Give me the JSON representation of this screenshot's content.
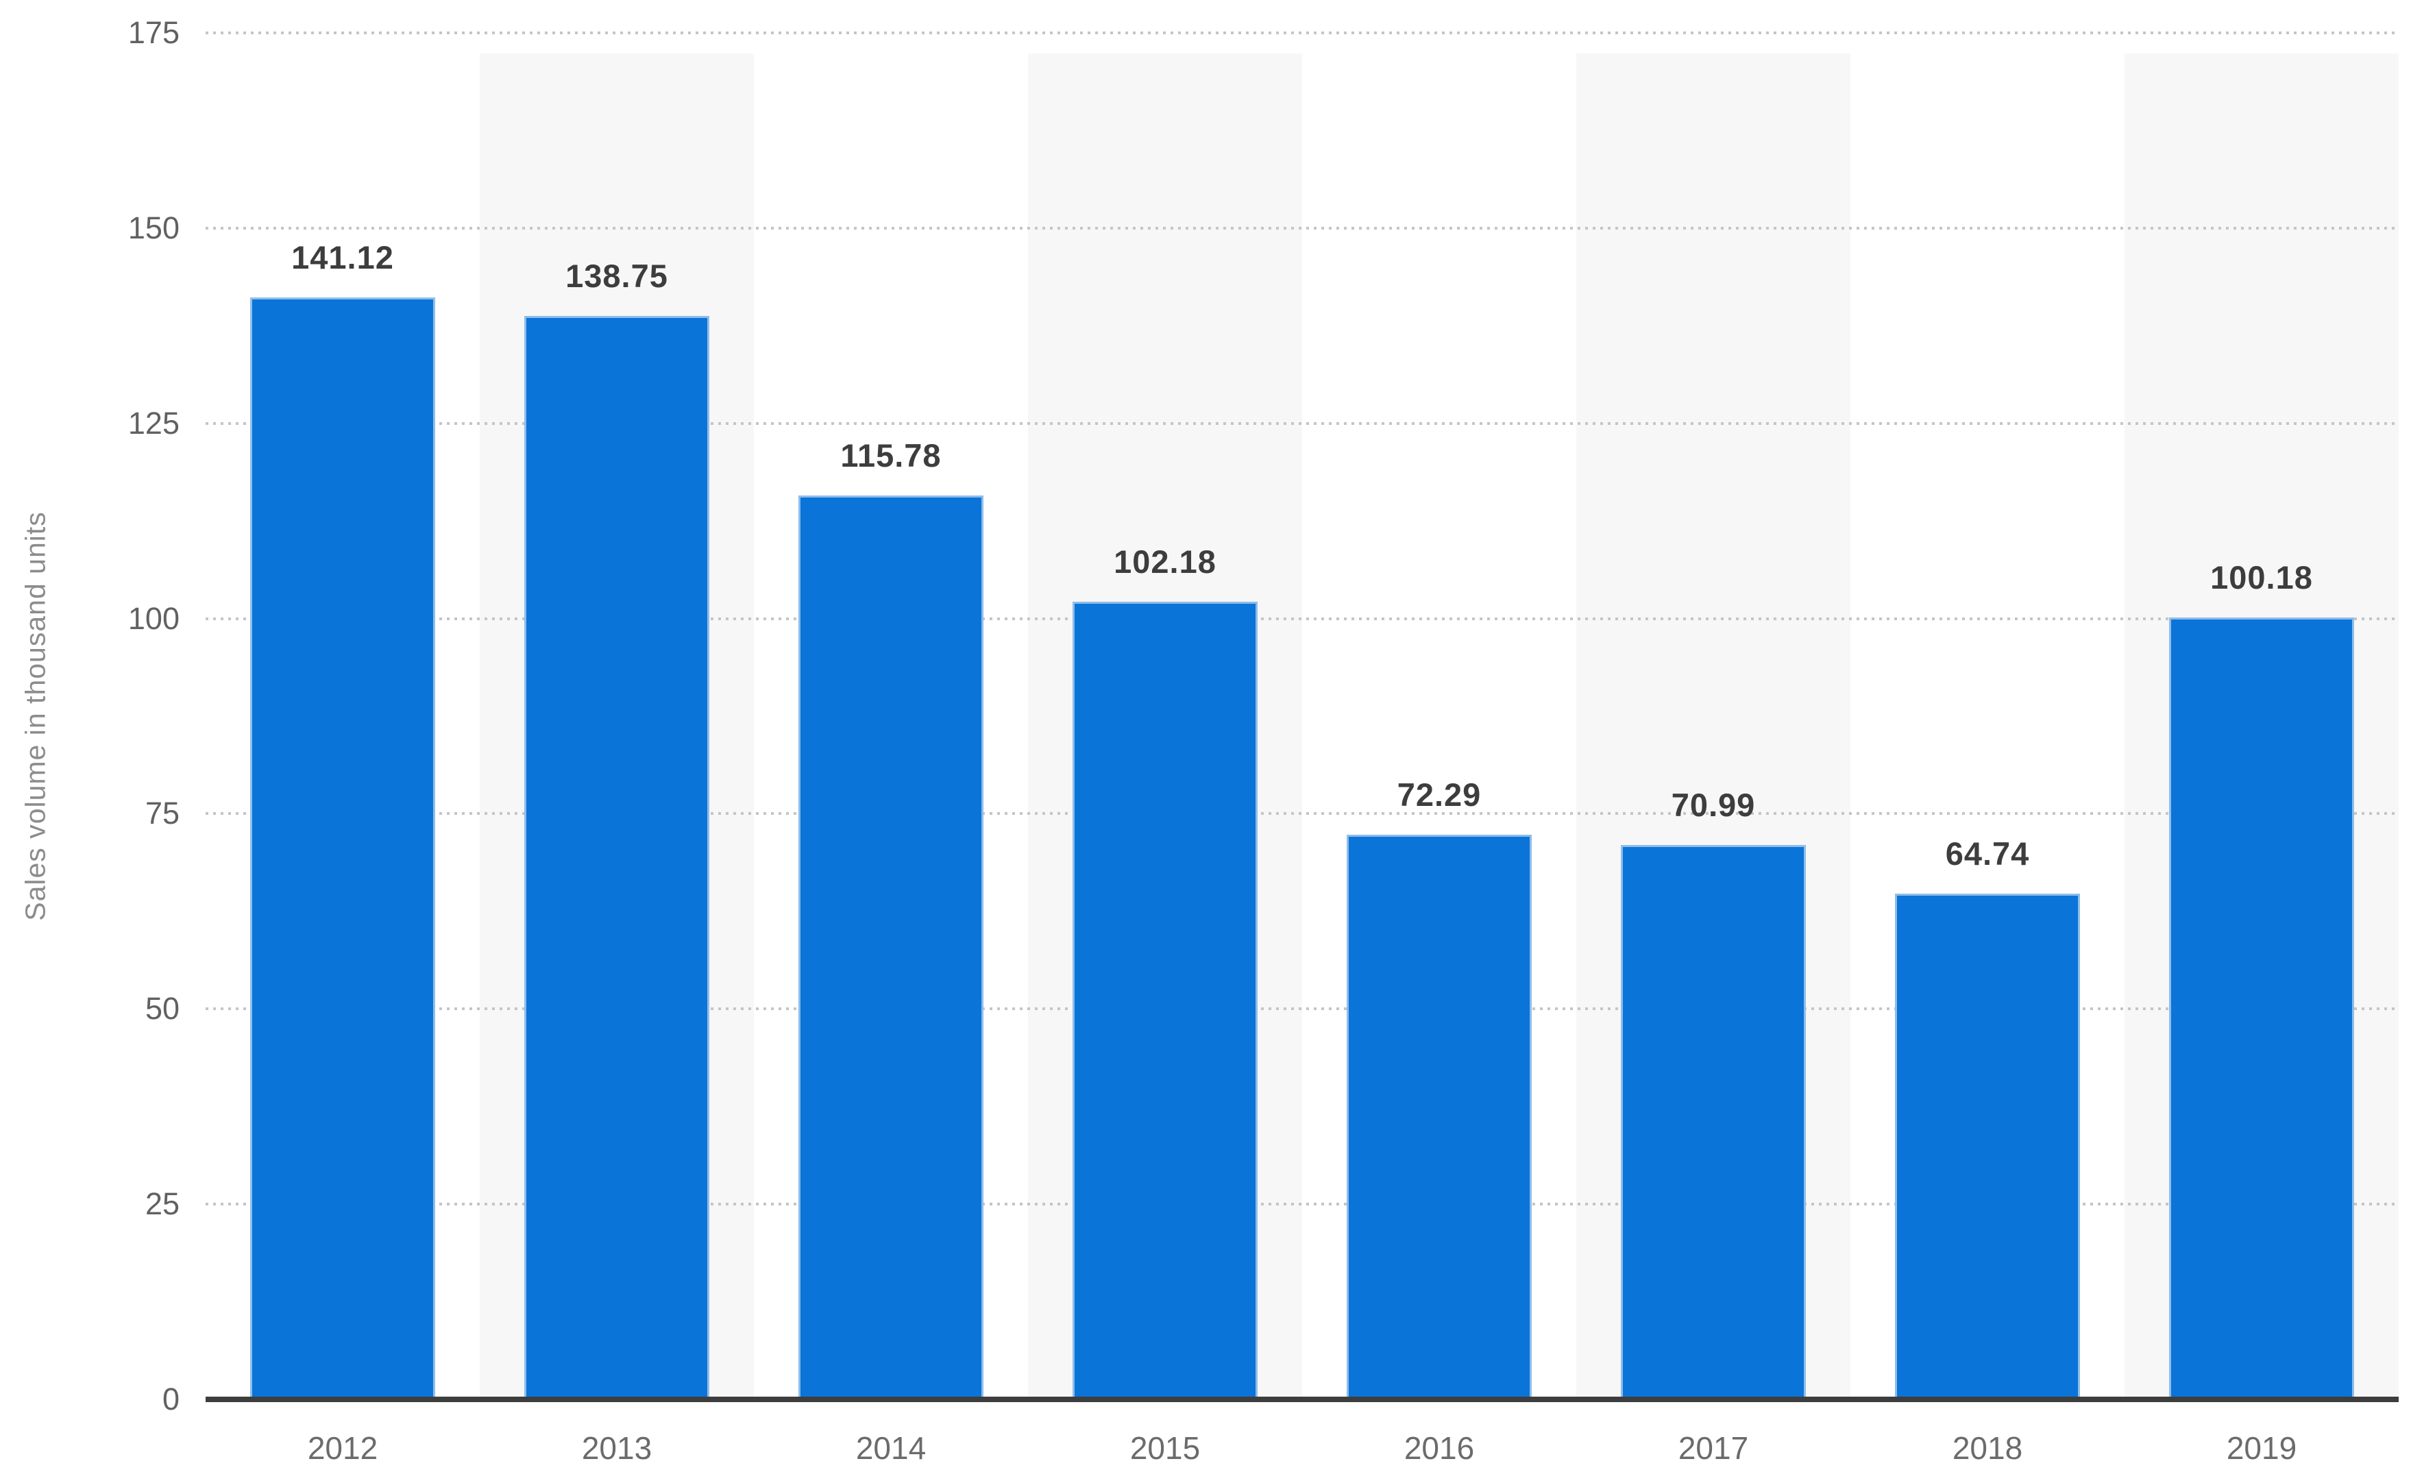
{
  "chart_data": {
    "type": "bar",
    "title": "",
    "xlabel": "",
    "ylabel": "Sales volume in thousand units",
    "categories": [
      "2012",
      "2013",
      "2014",
      "2015",
      "2016",
      "2017",
      "2018",
      "2019"
    ],
    "values": [
      141.12,
      138.75,
      115.78,
      102.18,
      72.29,
      70.99,
      64.74,
      100.18
    ],
    "value_labels": [
      "141.12",
      "138.75",
      "115.78",
      "102.18",
      "72.29",
      "70.99",
      "64.74",
      "100.18"
    ],
    "ylim": [
      0,
      175
    ],
    "yticks": [
      0,
      25,
      50,
      75,
      100,
      125,
      150,
      175
    ],
    "grid": "horizontal-dotted",
    "plot_bands": "alternate-category-columns",
    "legend": "none",
    "colors": {
      "background": "#ffffff",
      "bar_fill": "#0b74d8",
      "bar_border": "#8fbde9",
      "plot_band": "#f7f7f7",
      "gridline": "#c5c5c5",
      "axis_line": "#3d3d3d",
      "y_tick_label": "#616161",
      "x_tick_label": "#6b6b6b",
      "value_label": "#3d3d3d",
      "y_axis_title": "#8c8c8c"
    }
  }
}
